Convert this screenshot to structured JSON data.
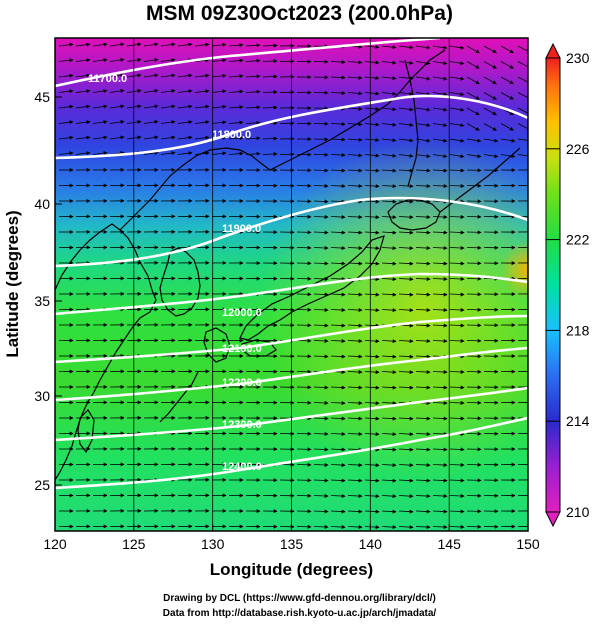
{
  "title": "MSM 09Z30Oct2023 (200.0hPa)",
  "xlabel": "Longitude (degrees)",
  "ylabel": "Latitude  (degrees)",
  "x_ticks": [
    "120",
    "125",
    "130",
    "135",
    "140",
    "145",
    "150"
  ],
  "y_ticks": [
    "25",
    "30",
    "35",
    "40",
    "45"
  ],
  "colorbar": {
    "min": 210,
    "max": 230,
    "tick_labels": [
      "230",
      "226",
      "222",
      "218",
      "214",
      "210"
    ],
    "colors": [
      "#d800b0",
      "#9a1fd0",
      "#3333cc",
      "#2a6ef0",
      "#19c0ff",
      "#00e0a0",
      "#22dd44",
      "#6ee01a",
      "#c8e010",
      "#ffc000",
      "#ff7010",
      "#ee2020"
    ]
  },
  "contours": [
    {
      "label": "11700.0"
    },
    {
      "label": "11800.0"
    },
    {
      "label": "11900.0"
    },
    {
      "label": "12000.0"
    },
    {
      "label": "12100.0"
    },
    {
      "label": "12200.0"
    },
    {
      "label": "12300.0"
    },
    {
      "label": "12400.0"
    }
  ],
  "credits": {
    "drawing": "Drawing by DCL (https://www.gfd-dennou.org/library/dcl/)",
    "data": "Data from http://database.rish.kyoto-u.ac.jp/arch/jmadata/"
  },
  "colors": {
    "contour": "#ffffff",
    "vector": "#000000",
    "coast": "#000000"
  }
}
